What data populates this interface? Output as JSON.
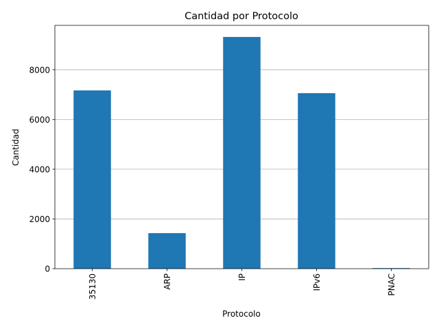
{
  "chart_data": {
    "type": "bar",
    "title": "Cantidad por Protocolo",
    "xlabel": "Protocolo",
    "ylabel": "Cantidad",
    "categories": [
      "35130",
      "ARP",
      "IP",
      "IPv6",
      "PNAC"
    ],
    "values": [
      7170,
      1430,
      9320,
      7060,
      25
    ],
    "ylim": [
      0,
      9786
    ],
    "yticks": [
      0,
      2000,
      4000,
      6000,
      8000
    ],
    "grid": "y",
    "x_tick_rotation": "vertical",
    "bar_color": "#1f77b4"
  }
}
